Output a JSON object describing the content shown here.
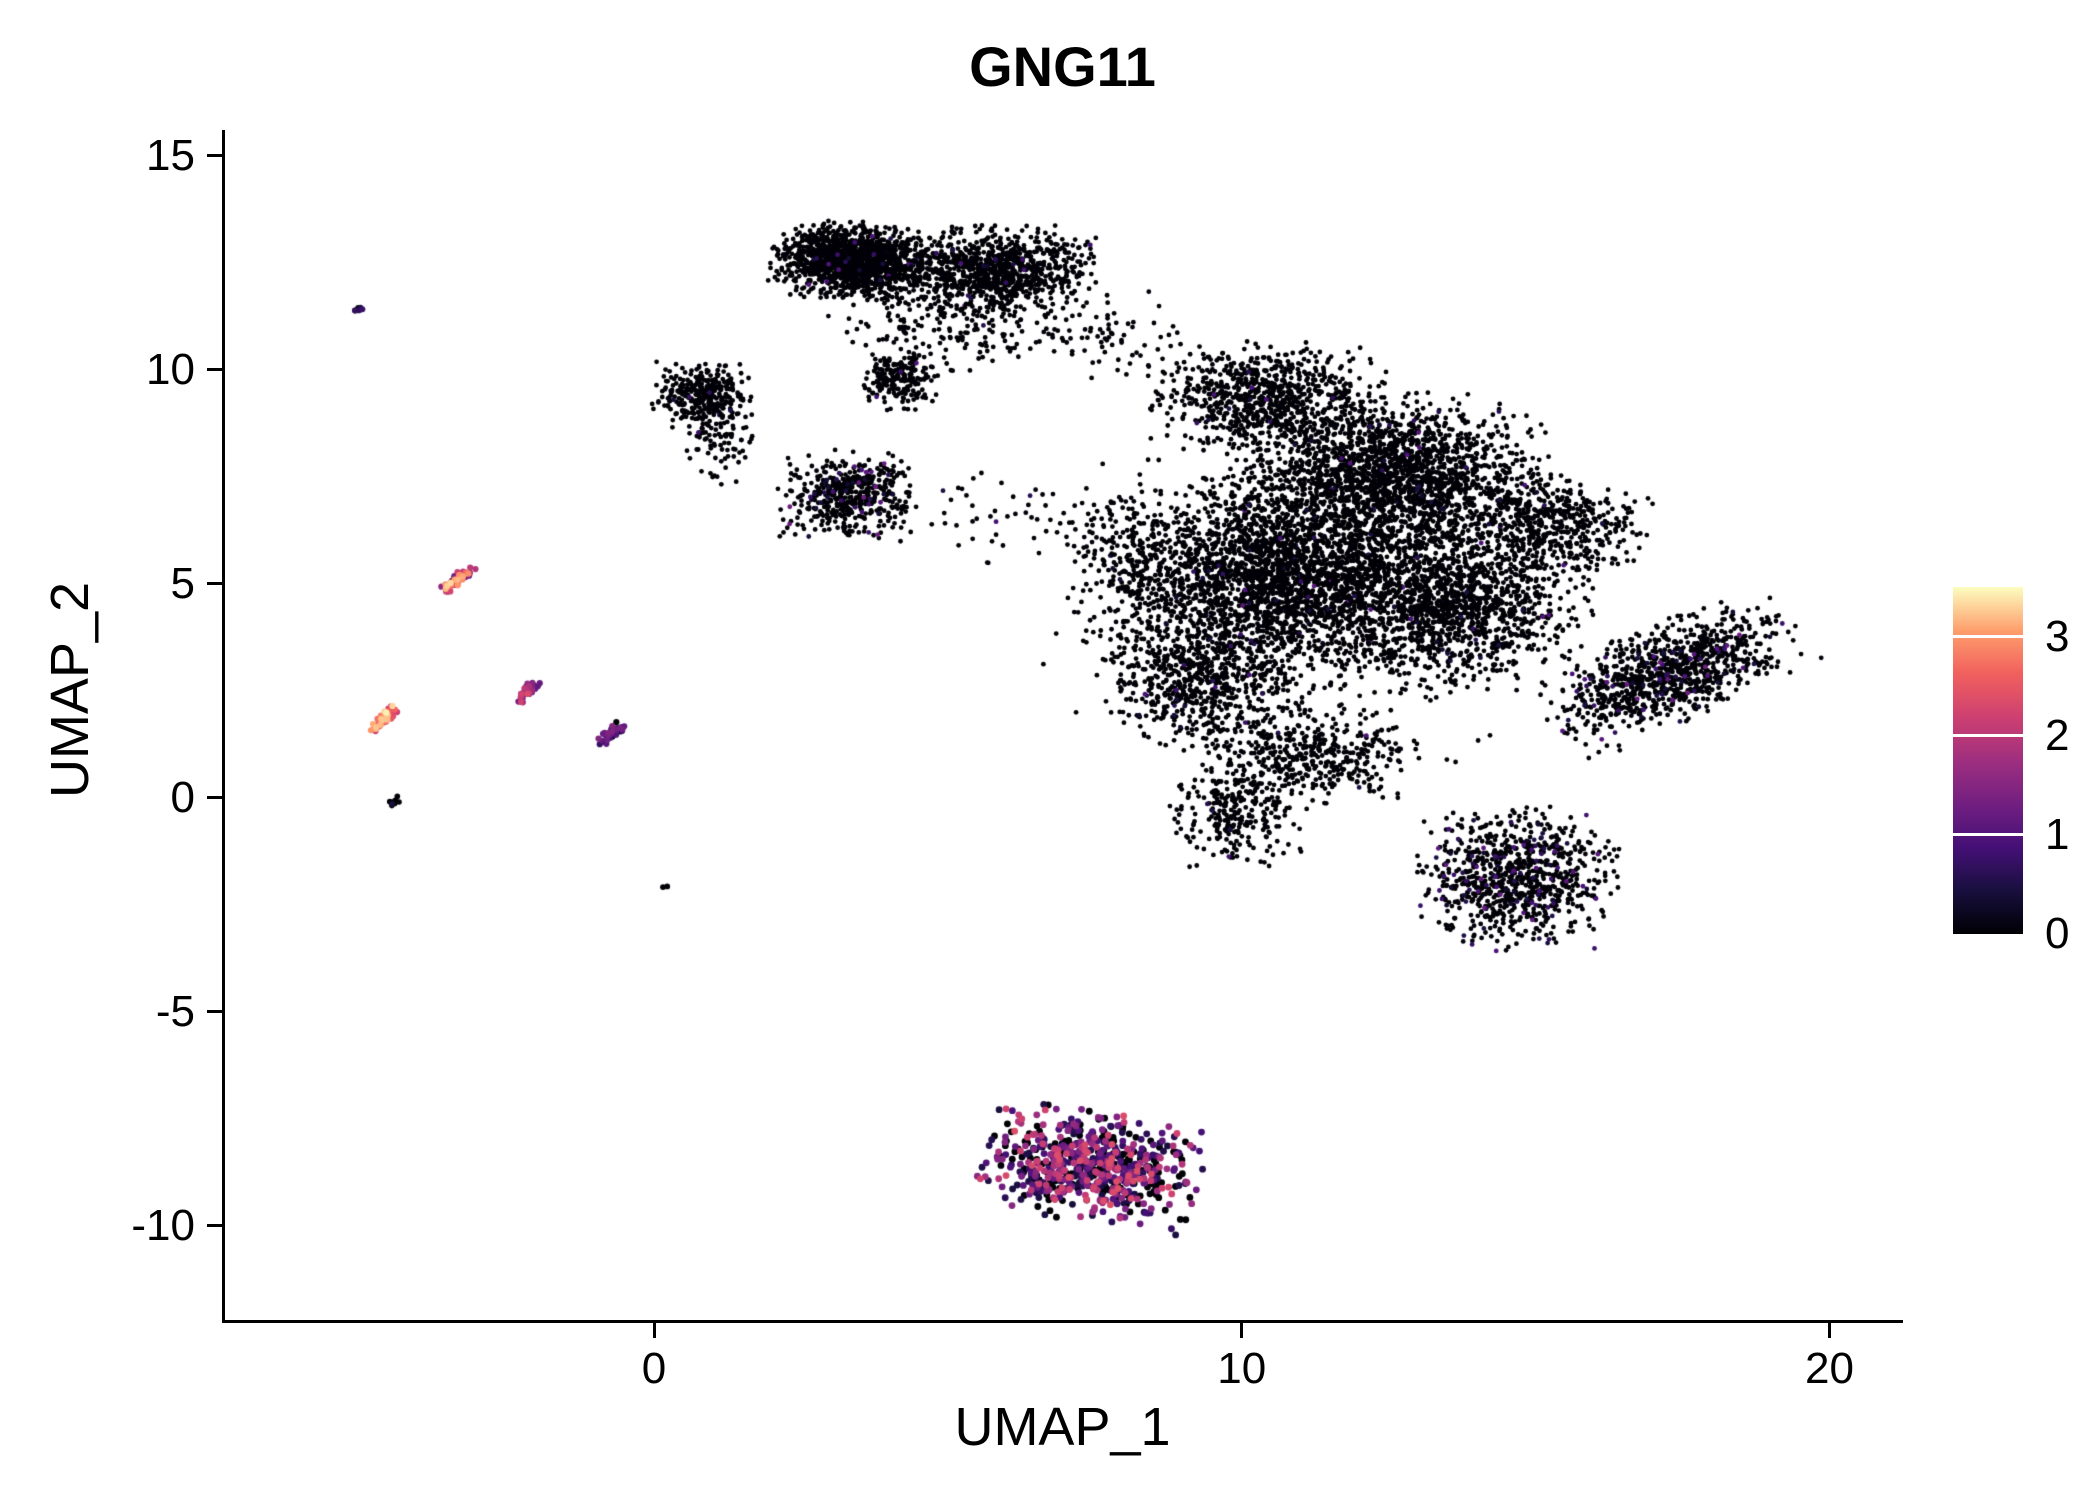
{
  "chart_data": {
    "type": "scatter",
    "title": "GNG11",
    "xlabel": "UMAP_1",
    "ylabel": "UMAP_2",
    "xlim": [
      -7.3,
      21.2
    ],
    "ylim": [
      -12.2,
      15.6
    ],
    "x_ticks": [
      0,
      10,
      20
    ],
    "y_ticks": [
      -10,
      -5,
      0,
      5,
      10,
      15
    ],
    "grid": false,
    "background": "#ffffff",
    "axis_color": "#000000",
    "color_encodes": "GNG11 expression level per cell (UMAP embedding, feature plot)",
    "legend": {
      "type": "colorbar",
      "position": "right",
      "label_values": [
        3,
        2,
        1,
        0
      ],
      "vmin": 0,
      "vmax": 3.5,
      "colormap": "magma",
      "colormap_stops": [
        "#000004",
        "#180f3e",
        "#451077",
        "#721f81",
        "#9f2f7f",
        "#cd4071",
        "#f1605d",
        "#fe9f6d",
        "#fcfdbf"
      ]
    },
    "point_seed": 12345,
    "clusters": [
      {
        "name": "top-left-lobe",
        "cx": 3.35,
        "cy": 12.55,
        "sx": 0.6,
        "sy": 0.4,
        "angle": -5,
        "n": 1400,
        "r": 2.4,
        "zero_frac": 0.985,
        "expr_min": 0.3,
        "expr_max": 1.1,
        "trunc": 2.3
      },
      {
        "name": "top-right-lobe",
        "cx": 5.75,
        "cy": 12.35,
        "sx": 0.8,
        "sy": 0.45,
        "angle": 0,
        "n": 950,
        "r": 2.4,
        "zero_frac": 0.985,
        "expr_min": 0.3,
        "expr_max": 1.1,
        "trunc": 2.3
      },
      {
        "name": "top-under-scatter",
        "cx": 5.2,
        "cy": 11.1,
        "sx": 0.95,
        "sy": 0.5,
        "angle": 0,
        "n": 210,
        "r": 2.4,
        "zero_frac": 0.99,
        "expr_min": 0.3,
        "expr_max": 0.9,
        "trunc": 2.4
      },
      {
        "name": "top-bridge-scatter",
        "cx": 7.6,
        "cy": 10.9,
        "sx": 0.6,
        "sy": 0.5,
        "angle": 0,
        "n": 70,
        "r": 2.4,
        "zero_frac": 0.99,
        "expr_min": 0.3,
        "expr_max": 0.9,
        "trunc": 2.4
      },
      {
        "name": "neck-knot",
        "cx": 4.15,
        "cy": 9.8,
        "sx": 0.3,
        "sy": 0.35,
        "angle": 0,
        "n": 200,
        "r": 2.4,
        "zero_frac": 0.985,
        "expr_min": 0.3,
        "expr_max": 1.0,
        "trunc": 2.3
      },
      {
        "name": "small-left-blob",
        "cx": 0.85,
        "cy": 9.4,
        "sx": 0.4,
        "sy": 0.35,
        "angle": 0,
        "n": 330,
        "r": 2.4,
        "zero_frac": 0.98,
        "expr_min": 0.3,
        "expr_max": 1.0,
        "trunc": 2.3
      },
      {
        "name": "small-left-tail",
        "cx": 1.15,
        "cy": 8.3,
        "sx": 0.3,
        "sy": 0.45,
        "angle": 0,
        "n": 80,
        "r": 2.4,
        "zero_frac": 0.97,
        "expr_min": 0.3,
        "expr_max": 1.0,
        "trunc": 2.4
      },
      {
        "name": "mid-small-blob",
        "cx": 3.3,
        "cy": 7.1,
        "sx": 0.52,
        "sy": 0.45,
        "angle": 0,
        "n": 500,
        "r": 2.4,
        "zero_frac": 0.93,
        "expr_min": 0.3,
        "expr_max": 1.3,
        "trunc": 2.3
      },
      {
        "name": "mid-scatter",
        "cx": 5.8,
        "cy": 6.7,
        "sx": 0.8,
        "sy": 0.5,
        "angle": 0,
        "n": 45,
        "r": 2.4,
        "zero_frac": 0.97,
        "expr_min": 0.3,
        "expr_max": 0.9,
        "trunc": 2.5
      },
      {
        "name": "main-top-lobe",
        "cx": 10.4,
        "cy": 9.4,
        "sx": 0.9,
        "sy": 0.55,
        "angle": 0,
        "n": 750,
        "r": 2.4,
        "zero_frac": 0.985,
        "expr_min": 0.3,
        "expr_max": 1.1,
        "trunc": 2.3
      },
      {
        "name": "main-upper-right",
        "cx": 12.5,
        "cy": 7.6,
        "sx": 1.15,
        "sy": 0.8,
        "angle": 0,
        "n": 1900,
        "r": 2.4,
        "zero_frac": 0.985,
        "expr_min": 0.3,
        "expr_max": 1.1,
        "trunc": 2.4
      },
      {
        "name": "main-center",
        "cx": 10.6,
        "cy": 5.2,
        "sx": 1.2,
        "sy": 1.0,
        "angle": 0,
        "n": 2300,
        "r": 2.4,
        "zero_frac": 0.985,
        "expr_min": 0.3,
        "expr_max": 1.1,
        "trunc": 2.4
      },
      {
        "name": "main-right",
        "cx": 13.6,
        "cy": 4.6,
        "sx": 1.0,
        "sy": 0.9,
        "angle": 0,
        "n": 1450,
        "r": 2.4,
        "zero_frac": 0.985,
        "expr_min": 0.3,
        "expr_max": 1.1,
        "trunc": 2.4
      },
      {
        "name": "main-lower-left",
        "cx": 9.35,
        "cy": 2.7,
        "sx": 0.75,
        "sy": 0.7,
        "angle": 0,
        "n": 620,
        "r": 2.4,
        "zero_frac": 0.98,
        "expr_min": 0.3,
        "expr_max": 1.1,
        "trunc": 2.3
      },
      {
        "name": "main-bottom",
        "cx": 11.2,
        "cy": 1.0,
        "sx": 0.8,
        "sy": 0.55,
        "angle": 0,
        "n": 430,
        "r": 2.4,
        "zero_frac": 0.98,
        "expr_min": 0.3,
        "expr_max": 1.1,
        "trunc": 2.3
      },
      {
        "name": "main-bottom-tip",
        "cx": 9.9,
        "cy": -0.4,
        "sx": 0.5,
        "sy": 0.55,
        "angle": 0,
        "n": 270,
        "r": 2.4,
        "zero_frac": 0.98,
        "expr_min": 0.3,
        "expr_max": 1.0,
        "trunc": 2.3
      },
      {
        "name": "main-left-band",
        "cx": 8.1,
        "cy": 5.4,
        "sx": 0.5,
        "sy": 0.95,
        "angle": 0,
        "n": 230,
        "r": 2.4,
        "zero_frac": 0.99,
        "expr_min": 0.3,
        "expr_max": 0.9,
        "trunc": 2.4
      },
      {
        "name": "main-right-arm",
        "cx": 15.3,
        "cy": 6.4,
        "sx": 0.7,
        "sy": 0.55,
        "angle": -20,
        "n": 430,
        "r": 2.4,
        "zero_frac": 0.985,
        "expr_min": 0.3,
        "expr_max": 1.1,
        "trunc": 2.3
      },
      {
        "name": "main-halo",
        "cx": 11.3,
        "cy": 5.0,
        "sx": 2.0,
        "sy": 1.8,
        "angle": 0,
        "n": 480,
        "r": 2.4,
        "zero_frac": 0.99,
        "expr_min": 0.3,
        "expr_max": 0.9,
        "trunc": 2.5
      },
      {
        "name": "lower-right-blob",
        "cx": 14.7,
        "cy": -1.9,
        "sx": 0.75,
        "sy": 0.75,
        "angle": 0,
        "n": 850,
        "r": 2.4,
        "zero_frac": 0.88,
        "expr_min": 0.3,
        "expr_max": 1.2,
        "trunc": 2.3
      },
      {
        "name": "right-diagonal",
        "cx": 17.3,
        "cy": 2.9,
        "sx": 1.05,
        "sy": 0.5,
        "angle": 30,
        "n": 950,
        "r": 2.4,
        "zero_frac": 0.95,
        "expr_min": 0.3,
        "expr_max": 1.3,
        "trunc": 2.3
      },
      {
        "name": "bottom-platelet-cluster",
        "cx": 7.45,
        "cy": -8.6,
        "sx": 0.85,
        "sy": 0.6,
        "angle": -12,
        "n": 680,
        "r": 3.4,
        "zero_frac": 0.3,
        "expr_min": 0.4,
        "expr_max": 2.4,
        "trunc": 2.2
      },
      {
        "name": "streak-upper-orange",
        "cx": -3.35,
        "cy": 5.1,
        "sx": 0.2,
        "sy": 0.055,
        "angle": 52,
        "n": 60,
        "r": 3.1,
        "zero_frac": 0.05,
        "expr_min": 1.3,
        "expr_max": 3.4,
        "trunc": 2.2
      },
      {
        "name": "streak-yellow",
        "cx": -4.6,
        "cy": 1.85,
        "sx": 0.17,
        "sy": 0.055,
        "angle": 52,
        "n": 52,
        "r": 3.1,
        "zero_frac": 0.02,
        "expr_min": 2.0,
        "expr_max": 3.5,
        "trunc": 2.2
      },
      {
        "name": "streak-magenta",
        "cx": -2.15,
        "cy": 2.5,
        "sx": 0.15,
        "sy": 0.05,
        "angle": 52,
        "n": 45,
        "r": 3.1,
        "zero_frac": 0.1,
        "expr_min": 0.6,
        "expr_max": 2.4,
        "trunc": 2.2
      },
      {
        "name": "streak-dark",
        "cx": -0.72,
        "cy": 1.5,
        "sx": 0.16,
        "sy": 0.06,
        "angle": 50,
        "n": 50,
        "r": 3.1,
        "zero_frac": 0.35,
        "expr_min": 0.3,
        "expr_max": 1.5,
        "trunc": 2.2
      },
      {
        "name": "speck-top-left",
        "cx": -5.05,
        "cy": 11.4,
        "sx": 0.07,
        "sy": 0.035,
        "angle": 52,
        "n": 7,
        "r": 3.0,
        "zero_frac": 0.25,
        "expr_min": 0.4,
        "expr_max": 1.0,
        "trunc": 2.0
      },
      {
        "name": "speck-left",
        "cx": -4.4,
        "cy": -0.08,
        "sx": 0.08,
        "sy": 0.035,
        "angle": 52,
        "n": 9,
        "r": 2.8,
        "zero_frac": 0.85,
        "expr_min": 0.2,
        "expr_max": 0.6,
        "trunc": 2.0
      },
      {
        "name": "speck-single",
        "cx": 0.2,
        "cy": -2.1,
        "sx": 0.03,
        "sy": 0.03,
        "angle": 0,
        "n": 2,
        "r": 2.9,
        "zero_frac": 0.3,
        "expr_min": 0.6,
        "expr_max": 1.0,
        "trunc": 2.0
      }
    ]
  }
}
